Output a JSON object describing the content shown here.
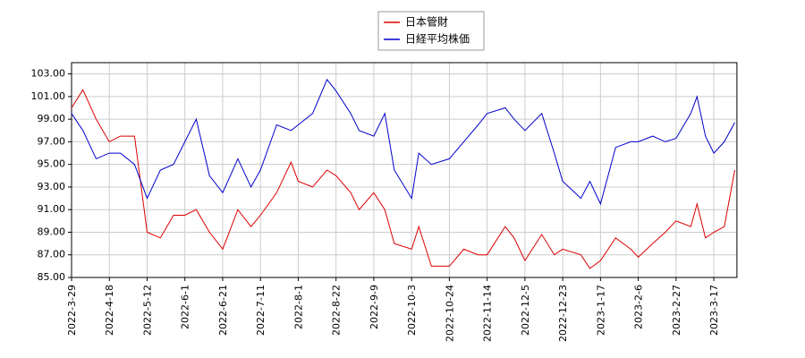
{
  "chart_data": {
    "type": "line",
    "x": [
      "2022-3-29",
      "2022-4-4",
      "2022-4-11",
      "2022-4-18",
      "2022-4-25",
      "2022-5-4",
      "2022-5-12",
      "2022-5-19",
      "2022-5-26",
      "2022-6-1",
      "2022-6-7",
      "2022-6-14",
      "2022-6-21",
      "2022-6-29",
      "2022-7-6",
      "2022-7-11",
      "2022-7-20",
      "2022-7-28",
      "2022-8-1",
      "2022-8-9",
      "2022-8-17",
      "2022-8-22",
      "2022-8-29",
      "2022-9-2",
      "2022-9-9",
      "2022-9-16",
      "2022-9-22",
      "2022-10-3",
      "2022-10-7",
      "2022-10-14",
      "2022-10-24",
      "2022-11-1",
      "2022-11-9",
      "2022-11-14",
      "2022-11-24",
      "2022-11-29",
      "2022-12-5",
      "2022-12-13",
      "2022-12-19",
      "2022-12-23",
      "2023-1-4",
      "2023-1-10",
      "2023-1-17",
      "2023-1-25",
      "2023-2-2",
      "2023-2-6",
      "2023-2-14",
      "2023-2-21",
      "2023-2-27",
      "2023-3-6",
      "2023-3-9",
      "2023-3-13",
      "2023-3-17",
      "2023-3-22",
      "2023-3-27"
    ],
    "series": [
      {
        "name": "日本管財",
        "color": "#dd0000",
        "values": [
          100.0,
          101.6,
          99.0,
          97.0,
          97.5,
          97.5,
          89.0,
          88.5,
          90.5,
          90.5,
          91.0,
          89.0,
          87.5,
          91.0,
          89.5,
          90.5,
          92.5,
          95.2,
          93.5,
          93.0,
          94.5,
          94.0,
          92.5,
          91.0,
          92.5,
          91.0,
          88.0,
          87.5,
          89.5,
          86.0,
          86.0,
          87.5,
          87.0,
          87.0,
          89.5,
          88.5,
          86.5,
          88.8,
          87.0,
          87.5,
          87.0,
          85.8,
          86.5,
          88.5,
          87.5,
          86.8,
          88.0,
          89.0,
          90.0,
          89.5,
          91.5,
          88.5,
          89.0,
          89.5,
          94.5
        ]
      },
      {
        "name": "日経平均株価",
        "color": "#0000cc",
        "values": [
          99.5,
          98.0,
          95.5,
          96.0,
          96.0,
          95.0,
          92.0,
          94.5,
          95.0,
          97.0,
          99.0,
          94.0,
          92.5,
          95.5,
          93.0,
          94.5,
          98.5,
          98.0,
          98.5,
          99.5,
          102.5,
          101.5,
          99.5,
          98.0,
          97.5,
          99.5,
          94.5,
          92.0,
          96.0,
          95.0,
          95.5,
          97.0,
          98.5,
          99.5,
          100.0,
          99.0,
          98.0,
          99.5,
          96.0,
          93.5,
          92.0,
          93.5,
          91.5,
          96.5,
          97.0,
          97.0,
          97.5,
          97.0,
          97.3,
          99.5,
          101.0,
          97.5,
          96.0,
          97.0,
          98.7
        ]
      }
    ],
    "xlim": [
      "2022-3-29",
      "2023-3-28"
    ],
    "xticks": [
      "2022-3-29",
      "2022-4-18",
      "2022-5-12",
      "2022-6-1",
      "2022-6-21",
      "2022-7-11",
      "2022-8-1",
      "2022-8-22",
      "2022-9-9",
      "2022-10-3",
      "2022-10-24",
      "2022-11-14",
      "2022-12-5",
      "2022-12-23",
      "2023-1-17",
      "2023-2-6",
      "2023-2-27",
      "2023-3-17"
    ],
    "ylim": [
      85,
      104
    ],
    "yticks": [
      {
        "value": 85,
        "label": "85.00"
      },
      {
        "value": 87,
        "label": "87.00"
      },
      {
        "value": 89,
        "label": "89.00"
      },
      {
        "value": 91,
        "label": "91.00"
      },
      {
        "value": 93,
        "label": "93.00"
      },
      {
        "value": 95,
        "label": "95.00"
      },
      {
        "value": 97,
        "label": "97.00"
      },
      {
        "value": 99,
        "label": "99.00"
      },
      {
        "value": 101,
        "label": "101.00"
      },
      {
        "value": 103,
        "label": "103.00"
      }
    ],
    "grid": true
  }
}
